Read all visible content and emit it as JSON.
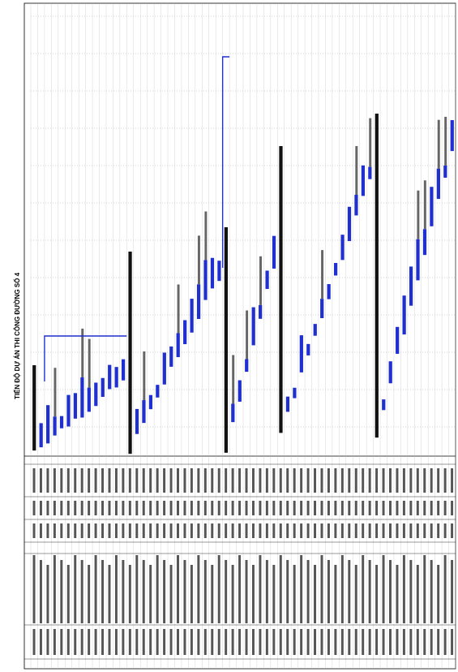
{
  "header": {
    "title": "TIẾN ĐỘ DỰ ÁN THI CÔNG ĐƯỜNG SỐ 4"
  }
}
